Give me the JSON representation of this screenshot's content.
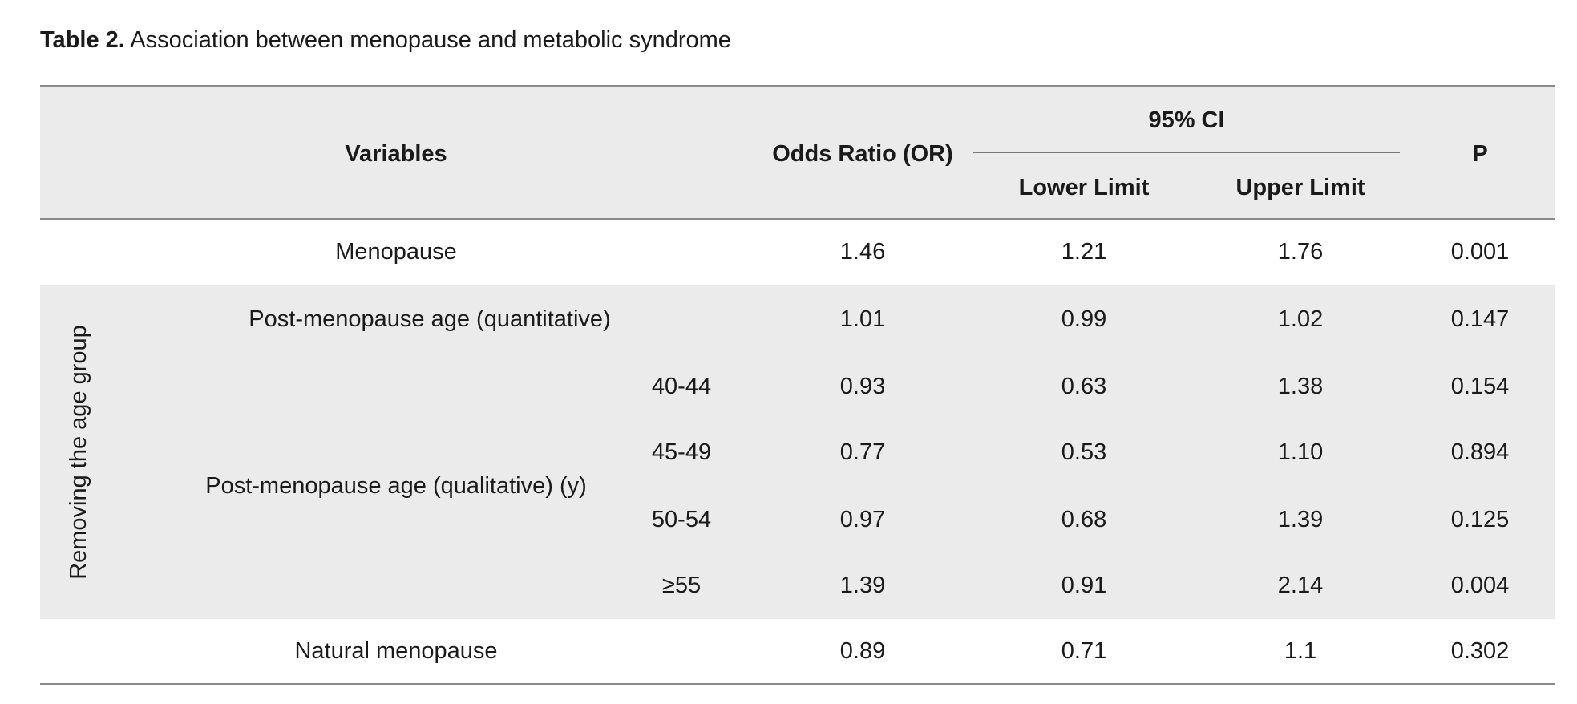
{
  "caption": {
    "label": "Table 2.",
    "text": " Association between menopause and metabolic syndrome"
  },
  "header": {
    "variables": "Variables",
    "odds_ratio": "Odds Ratio (OR)",
    "ci": "95% CI",
    "lower": "Lower Limit",
    "upper": "Upper Limit",
    "p": "P"
  },
  "group_label": "Removing the age group",
  "rows": [
    {
      "label": "Menopause",
      "sub": "",
      "or": "1.46",
      "lower": "1.21",
      "upper": "1.76",
      "p": "0.001"
    },
    {
      "label": "Post-menopause age (quantitative)",
      "sub": "",
      "or": "1.01",
      "lower": "0.99",
      "upper": "1.02",
      "p": "0.147"
    },
    {
      "label": "",
      "sub": "40-44",
      "or": "0.93",
      "lower": "0.63",
      "upper": "1.38",
      "p": "0.154"
    },
    {
      "label": "",
      "sub": "45-49",
      "or": "0.77",
      "lower": "0.53",
      "upper": "1.10",
      "p": "0.894"
    },
    {
      "label": "",
      "sub": "50-54",
      "or": "0.97",
      "lower": "0.68",
      "upper": "1.39",
      "p": "0.125"
    },
    {
      "label": "",
      "sub": "≥55",
      "or": "1.39",
      "lower": "0.91",
      "upper": "2.14",
      "p": "0.004"
    },
    {
      "label": "Natural menopause",
      "sub": "",
      "or": "0.89",
      "lower": "0.71",
      "upper": "1.1",
      "p": "0.302"
    }
  ],
  "qualitative_label": "Post-menopause age (qualitative) (y)"
}
